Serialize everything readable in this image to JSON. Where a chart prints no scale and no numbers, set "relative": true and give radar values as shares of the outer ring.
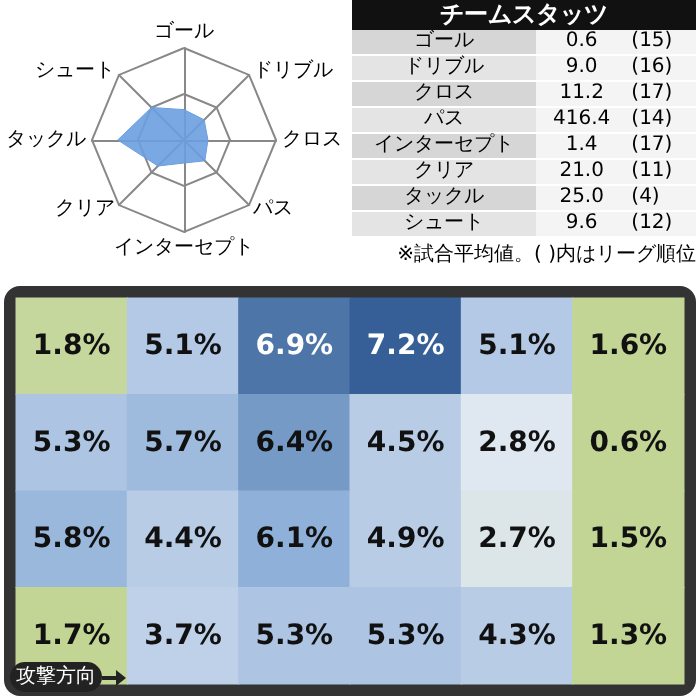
{
  "chart_data": [
    {
      "type": "radar",
      "categories": [
        "ゴール",
        "ドリブル",
        "クロス",
        "パス",
        "インターセプト",
        "クリア",
        "タックル",
        "シュート"
      ],
      "relative": true,
      "grid": true,
      "series": [
        {
          "color": "#6a9edf",
          "values": [
            0.33,
            0.31,
            0.26,
            0.32,
            0.25,
            0.4,
            0.72,
            0.5
          ]
        }
      ]
    },
    {
      "type": "other",
      "title": "チームスタッツ",
      "categories": [
        "ゴール",
        "ドリブル",
        "クロス",
        "パス",
        "インターセプト",
        "クリア",
        "タックル",
        "シュート"
      ],
      "series": [
        {
          "values": [
            0.6,
            9.0,
            11.2,
            416.4,
            1.4,
            21.0,
            25.0,
            9.6
          ],
          "value_labels": [
            "0.6",
            "9.0",
            "11.2",
            "416.4",
            "1.4",
            "21.0",
            "25.0",
            "9.6"
          ]
        },
        {
          "values": [
            15,
            16,
            17,
            14,
            17,
            11,
            4,
            12
          ],
          "value_labels": [
            "(15)",
            "(16)",
            "(17)",
            "(14)",
            "(17)",
            "(11)",
            "(4)",
            "(12)"
          ]
        }
      ],
      "annotations": [
        "※試合平均値。( )内はリーグ順位"
      ]
    },
    {
      "type": "heatmap",
      "categories": [
        null,
        null,
        null,
        null,
        null,
        null
      ],
      "y_categories": [
        null,
        null,
        null,
        null
      ],
      "cells": [
        [
          1.8,
          5.1,
          6.9,
          7.2,
          5.1,
          1.6
        ],
        [
          5.3,
          5.7,
          6.4,
          4.5,
          2.8,
          0.6
        ],
        [
          5.8,
          4.4,
          6.1,
          4.9,
          2.7,
          1.5
        ],
        [
          1.7,
          3.7,
          5.3,
          5.3,
          4.3,
          1.3
        ]
      ],
      "cell_labels": [
        [
          "1.8%",
          "5.1%",
          "6.9%",
          "7.2%",
          "5.1%",
          "1.6%"
        ],
        [
          "5.3%",
          "5.7%",
          "6.4%",
          "4.5%",
          "2.8%",
          "0.6%"
        ],
        [
          "5.8%",
          "4.4%",
          "6.1%",
          "4.9%",
          "2.7%",
          "1.5%"
        ],
        [
          "1.7%",
          "3.7%",
          "5.3%",
          "5.3%",
          "4.3%",
          "1.3%"
        ]
      ],
      "annotations": [
        "攻撃方向"
      ]
    }
  ]
}
